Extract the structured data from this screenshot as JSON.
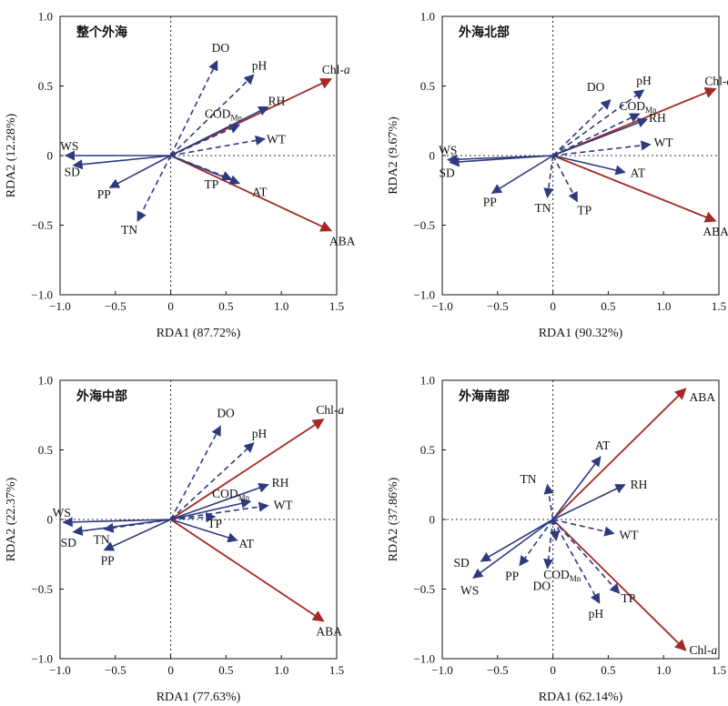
{
  "colors": {
    "env": "#2e3a7e",
    "species": "#a32a24",
    "frame": "#111111",
    "zero": "#333333"
  },
  "chart_data": [
    {
      "type": "scatter",
      "title": "整个外海",
      "xlabel": "RDA1 (87.72%)",
      "ylabel": "RDA2 (12.28%)",
      "xlim": [
        -1.0,
        1.5
      ],
      "ylim": [
        -1.0,
        1.0
      ],
      "xticks": [
        "−1.0",
        "−0.5",
        "0",
        "0.5",
        "1.0",
        "1.5"
      ],
      "yticks": [
        "−1.0",
        "−0.5",
        "0",
        "0.5",
        "1.0"
      ],
      "vectors": [
        {
          "name": "Chl-",
          "name_italic": "a",
          "x": 1.45,
          "y": 0.55,
          "group": "species",
          "solid": true
        },
        {
          "name": "ABA",
          "x": 1.45,
          "y": -0.54,
          "group": "species",
          "solid": true
        },
        {
          "name": "DO",
          "x": 0.42,
          "y": 0.68,
          "group": "env",
          "solid": false
        },
        {
          "name": "pH",
          "x": 0.75,
          "y": 0.58,
          "group": "env",
          "solid": false
        },
        {
          "name": "COD",
          "sub": "Mn",
          "x": 0.62,
          "y": 0.22,
          "group": "env",
          "solid": false
        },
        {
          "name": "RH",
          "x": 0.88,
          "y": 0.35,
          "group": "env",
          "solid": true
        },
        {
          "name": "WT",
          "x": 0.85,
          "y": 0.12,
          "group": "env",
          "solid": false
        },
        {
          "name": "TP",
          "x": 0.55,
          "y": -0.17,
          "group": "env",
          "solid": false
        },
        {
          "name": "AT",
          "x": 0.62,
          "y": -0.2,
          "group": "env",
          "solid": true
        },
        {
          "name": "WS",
          "x": -0.95,
          "y": 0.0,
          "group": "env",
          "solid": true
        },
        {
          "name": "SD",
          "x": -0.88,
          "y": -0.07,
          "group": "env",
          "solid": true
        },
        {
          "name": "PP",
          "x": -0.55,
          "y": -0.23,
          "group": "env",
          "solid": true
        },
        {
          "name": "TN",
          "x": -0.3,
          "y": -0.47,
          "group": "env",
          "solid": false
        }
      ]
    },
    {
      "type": "scatter",
      "title": "外海北部",
      "xlabel": "RDA1 (90.32%)",
      "ylabel": "RDA2 (9.67%)",
      "xlim": [
        -1.0,
        1.5
      ],
      "ylim": [
        -1.0,
        1.0
      ],
      "xticks": [
        "−1.0",
        "−0.5",
        "0",
        "0.5",
        "1.0",
        "1.5"
      ],
      "yticks": [
        "−1.0",
        "−0.5",
        "0",
        "0.5",
        "1.0"
      ],
      "vectors": [
        {
          "name": "Chl-",
          "name_italic": "a",
          "x": 1.47,
          "y": 0.48,
          "group": "species",
          "solid": true
        },
        {
          "name": "ABA",
          "x": 1.47,
          "y": -0.47,
          "group": "species",
          "solid": true
        },
        {
          "name": "DO",
          "x": 0.52,
          "y": 0.4,
          "group": "env",
          "solid": false
        },
        {
          "name": "pH",
          "x": 0.82,
          "y": 0.47,
          "group": "env",
          "solid": false
        },
        {
          "name": "COD",
          "sub": "Mn",
          "x": 0.78,
          "y": 0.3,
          "group": "env",
          "solid": false
        },
        {
          "name": "RH",
          "x": 0.85,
          "y": 0.26,
          "group": "env",
          "solid": true
        },
        {
          "name": "WT",
          "x": 0.88,
          "y": 0.08,
          "group": "env",
          "solid": false
        },
        {
          "name": "AT",
          "x": 0.65,
          "y": -0.12,
          "group": "env",
          "solid": true
        },
        {
          "name": "TP",
          "x": 0.22,
          "y": -0.33,
          "group": "env",
          "solid": false
        },
        {
          "name": "TN",
          "x": -0.05,
          "y": -0.3,
          "group": "env",
          "solid": false
        },
        {
          "name": "WS",
          "x": -0.95,
          "y": -0.03,
          "group": "env",
          "solid": true
        },
        {
          "name": "SD",
          "x": -0.93,
          "y": -0.05,
          "group": "env",
          "solid": true
        },
        {
          "name": "PP",
          "x": -0.55,
          "y": -0.27,
          "group": "env",
          "solid": true
        }
      ]
    },
    {
      "type": "scatter",
      "title": "外海中部",
      "xlabel": "RDA1 (77.63%)",
      "ylabel": "RDA2 (22.37%)",
      "xlim": [
        -1.0,
        1.5
      ],
      "ylim": [
        -1.0,
        1.0
      ],
      "xticks": [
        "−1.0",
        "−0.5",
        "0",
        "0.5",
        "1.0",
        "1.5"
      ],
      "yticks": [
        "−1.0",
        "−0.5",
        "0",
        "0.5",
        "1.0"
      ],
      "vectors": [
        {
          "name": "Chl-",
          "name_italic": "a",
          "x": 1.38,
          "y": 0.72,
          "group": "species",
          "solid": true
        },
        {
          "name": "ABA",
          "x": 1.38,
          "y": -0.73,
          "group": "species",
          "solid": true
        },
        {
          "name": "DO",
          "x": 0.45,
          "y": 0.67,
          "group": "env",
          "solid": false
        },
        {
          "name": "pH",
          "x": 0.75,
          "y": 0.55,
          "group": "env",
          "solid": false
        },
        {
          "name": "RH",
          "x": 0.88,
          "y": 0.25,
          "group": "env",
          "solid": true
        },
        {
          "name": "COD",
          "sub": "Mn",
          "x": 0.72,
          "y": 0.13,
          "group": "env",
          "solid": true
        },
        {
          "name": "WT",
          "x": 0.88,
          "y": 0.1,
          "group": "env",
          "solid": false
        },
        {
          "name": "TP",
          "x": 0.4,
          "y": 0.02,
          "group": "env",
          "solid": false
        },
        {
          "name": "AT",
          "x": 0.6,
          "y": -0.15,
          "group": "env",
          "solid": true
        },
        {
          "name": "WS",
          "x": -0.97,
          "y": -0.02,
          "group": "env",
          "solid": true
        },
        {
          "name": "SD",
          "x": -0.88,
          "y": -0.09,
          "group": "env",
          "solid": true
        },
        {
          "name": "TN",
          "x": -0.6,
          "y": -0.07,
          "group": "env",
          "solid": false
        },
        {
          "name": "PP",
          "x": -0.6,
          "y": -0.22,
          "group": "env",
          "solid": true
        }
      ]
    },
    {
      "type": "scatter",
      "title": "外海南部",
      "xlabel": "RDA1 (62.14%)",
      "ylabel": "RDA2 (37.86%)",
      "xlim": [
        -1.0,
        1.5
      ],
      "ylim": [
        -1.0,
        1.0
      ],
      "xticks": [
        "−1.0",
        "−0.5",
        "0",
        "0.5",
        "1.0",
        "1.5"
      ],
      "yticks": [
        "−1.0",
        "−0.5",
        "0",
        "0.5",
        "1.0"
      ],
      "vectors": [
        {
          "name": "ABA",
          "x": 1.2,
          "y": 0.94,
          "group": "species",
          "solid": true
        },
        {
          "name": "Chl-",
          "name_italic": "a",
          "x": 1.2,
          "y": -0.94,
          "group": "species",
          "solid": true
        },
        {
          "name": "AT",
          "x": 0.43,
          "y": 0.45,
          "group": "env",
          "solid": true
        },
        {
          "name": "RH",
          "x": 0.65,
          "y": 0.25,
          "group": "env",
          "solid": true
        },
        {
          "name": "TN",
          "x": -0.05,
          "y": 0.25,
          "group": "env",
          "solid": false
        },
        {
          "name": "WT",
          "x": 0.55,
          "y": -0.1,
          "group": "env",
          "solid": false
        },
        {
          "name": "TP",
          "x": 0.6,
          "y": -0.53,
          "group": "env",
          "solid": false
        },
        {
          "name": "pH",
          "x": 0.42,
          "y": -0.6,
          "group": "env",
          "solid": false
        },
        {
          "name": "COD",
          "sub": "Mn",
          "x": 0.03,
          "y": -0.15,
          "group": "env",
          "solid": false
        },
        {
          "name": "DO",
          "x": -0.05,
          "y": -0.35,
          "group": "env",
          "solid": false
        },
        {
          "name": "PP",
          "x": -0.3,
          "y": -0.33,
          "group": "env",
          "solid": false
        },
        {
          "name": "SD",
          "x": -0.65,
          "y": -0.3,
          "group": "env",
          "solid": true
        },
        {
          "name": "WS",
          "x": -0.72,
          "y": -0.42,
          "group": "env",
          "solid": true
        }
      ]
    }
  ]
}
